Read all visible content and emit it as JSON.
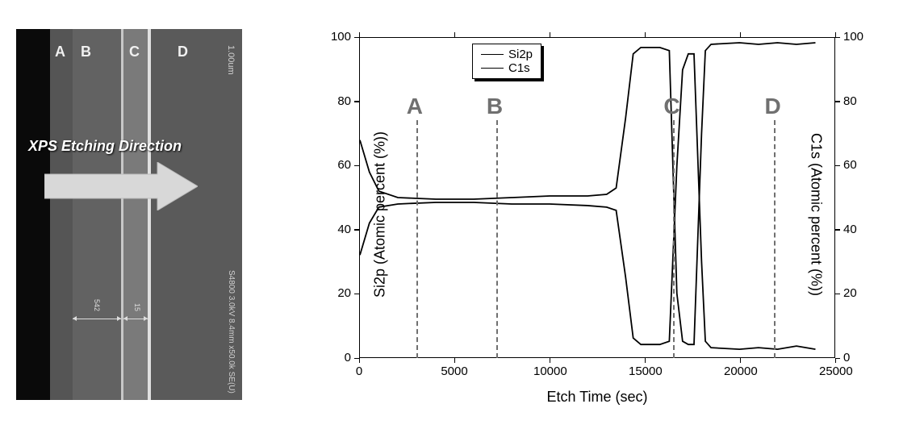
{
  "sem": {
    "labels": {
      "A": "A",
      "B": "B",
      "C": "C",
      "D": "D"
    },
    "arrow_text": "XPS Etching Direction",
    "scale_text": "1.00um",
    "meta_text": "S4800 3.0kV 8.4mm x50.0k SE(U)",
    "dim1": "542",
    "dim2": "15"
  },
  "chart": {
    "type": "line",
    "x_label": "Etch Time (sec)",
    "y_left_label": "Si2p (Atomic percent (%))",
    "y_right_label": "C1s (Atomic percent (%))",
    "xlim": [
      0,
      25000
    ],
    "ylim": [
      0,
      100
    ],
    "y_right_lim": [
      0,
      100
    ],
    "xticks": [
      0,
      5000,
      10000,
      15000,
      20000,
      25000
    ],
    "yticks": [
      0,
      20,
      40,
      60,
      80,
      100
    ],
    "y_right_ticks": [
      0,
      20,
      40,
      60,
      80,
      100
    ],
    "legend": {
      "series1": "Si2p",
      "series2": "C1s"
    },
    "region_marks": {
      "A": 3000,
      "B": 7200,
      "C": 16500,
      "D": 21800
    },
    "colors": {
      "line": "#000000",
      "dash": "#707070",
      "bg": "#ffffff",
      "text": "#000000",
      "region_text": "#707070"
    },
    "series_si2p": [
      [
        0,
        68
      ],
      [
        500,
        58
      ],
      [
        1000,
        52
      ],
      [
        2000,
        50
      ],
      [
        4000,
        49.5
      ],
      [
        6000,
        49.5
      ],
      [
        8000,
        50
      ],
      [
        10000,
        50.5
      ],
      [
        12000,
        50.5
      ],
      [
        13000,
        51
      ],
      [
        13500,
        53
      ],
      [
        14000,
        75
      ],
      [
        14400,
        95
      ],
      [
        14800,
        97
      ],
      [
        15800,
        97
      ],
      [
        16300,
        96
      ],
      [
        16700,
        20
      ],
      [
        17000,
        5
      ],
      [
        17300,
        4
      ],
      [
        17600,
        4
      ],
      [
        18000,
        70
      ],
      [
        18200,
        96
      ],
      [
        18500,
        98
      ],
      [
        20000,
        98.5
      ],
      [
        21000,
        98
      ],
      [
        22000,
        98.5
      ],
      [
        23000,
        98
      ],
      [
        24000,
        98.5
      ]
    ],
    "series_c1s": [
      [
        0,
        32
      ],
      [
        500,
        42
      ],
      [
        1000,
        47
      ],
      [
        2000,
        48
      ],
      [
        4000,
        48.5
      ],
      [
        6000,
        48.5
      ],
      [
        8000,
        48
      ],
      [
        10000,
        48
      ],
      [
        12000,
        47.5
      ],
      [
        13000,
        47
      ],
      [
        13500,
        46
      ],
      [
        14000,
        25
      ],
      [
        14400,
        6
      ],
      [
        14800,
        4
      ],
      [
        15800,
        4
      ],
      [
        16300,
        5
      ],
      [
        16700,
        60
      ],
      [
        17000,
        90
      ],
      [
        17300,
        95
      ],
      [
        17600,
        95
      ],
      [
        18000,
        30
      ],
      [
        18200,
        5
      ],
      [
        18500,
        3
      ],
      [
        20000,
        2.5
      ],
      [
        21000,
        3
      ],
      [
        22000,
        2.5
      ],
      [
        23000,
        3.5
      ],
      [
        24000,
        2.5
      ]
    ],
    "line_width": 1.8,
    "title_fontsize": 18,
    "tick_fontsize": 15
  }
}
